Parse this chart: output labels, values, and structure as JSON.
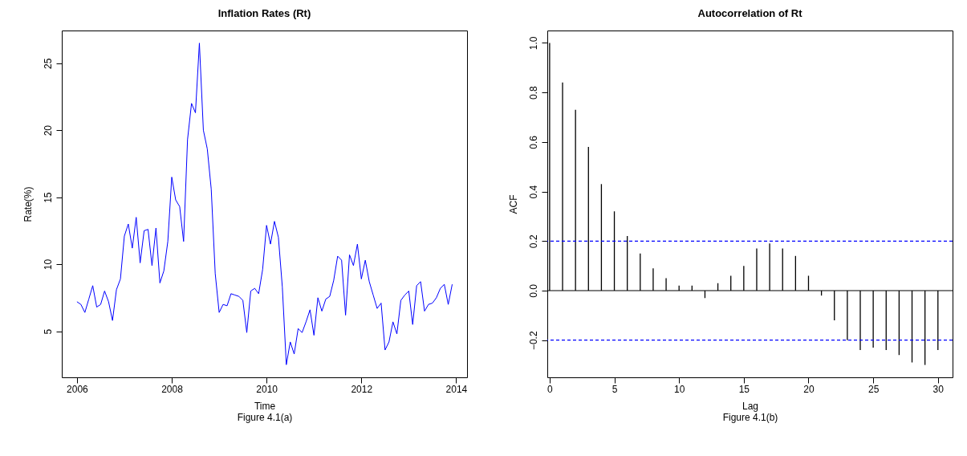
{
  "chart_data": [
    {
      "type": "line",
      "title": "Inflation Rates (Rt)",
      "xlabel": "Time",
      "ylabel": "Rate(%)",
      "annotations": [
        "Figure 4.1(a)"
      ],
      "x": [
        2006,
        2006.083,
        2006.167,
        2006.25,
        2006.333,
        2006.417,
        2006.5,
        2006.583,
        2006.667,
        2006.75,
        2006.833,
        2006.917,
        2007,
        2007.083,
        2007.167,
        2007.25,
        2007.333,
        2007.417,
        2007.5,
        2007.583,
        2007.667,
        2007.75,
        2007.833,
        2007.917,
        2008,
        2008.083,
        2008.167,
        2008.25,
        2008.333,
        2008.417,
        2008.5,
        2008.583,
        2008.667,
        2008.75,
        2008.833,
        2008.917,
        2009,
        2009.083,
        2009.167,
        2009.25,
        2009.333,
        2009.417,
        2009.5,
        2009.583,
        2009.667,
        2009.75,
        2009.833,
        2009.917,
        2010,
        2010.083,
        2010.167,
        2010.25,
        2010.333,
        2010.417,
        2010.5,
        2010.583,
        2010.667,
        2010.75,
        2010.833,
        2010.917,
        2011,
        2011.083,
        2011.167,
        2011.25,
        2011.333,
        2011.417,
        2011.5,
        2011.583,
        2011.667,
        2011.75,
        2011.833,
        2011.917,
        2012,
        2012.083,
        2012.167,
        2012.25,
        2012.333,
        2012.417,
        2012.5,
        2012.583,
        2012.667,
        2012.75,
        2012.833,
        2012.917,
        2013,
        2013.083,
        2013.167,
        2013.25,
        2013.333,
        2013.417,
        2013.5,
        2013.583,
        2013.667,
        2013.75,
        2013.833,
        2013.917
      ],
      "series": [
        {
          "color": "#0000ff",
          "values": [
            7.2,
            7.0,
            6.4,
            7.4,
            8.4,
            6.8,
            7.0,
            8.0,
            7.2,
            5.8,
            8.1,
            8.9,
            12.1,
            13.0,
            11.2,
            13.5,
            10.1,
            12.5,
            12.6,
            9.9,
            12.7,
            8.6,
            9.5,
            11.7,
            16.5,
            14.8,
            14.3,
            11.7,
            19.3,
            22.0,
            21.3,
            26.5,
            20.0,
            18.6,
            15.6,
            9.3,
            6.4,
            7.0,
            6.9,
            7.8,
            7.7,
            7.6,
            7.3,
            4.9,
            8.0,
            8.2,
            7.8,
            9.6,
            12.9,
            11.5,
            13.2,
            12.0,
            8.3,
            2.5,
            4.2,
            3.3,
            5.2,
            4.9,
            5.7,
            6.6,
            4.7,
            7.5,
            6.5,
            7.4,
            7.6,
            8.8,
            10.6,
            10.3,
            6.2,
            10.7,
            9.9,
            11.5,
            8.9,
            10.3,
            8.7,
            7.7,
            6.7,
            7.1,
            3.6,
            4.2,
            5.7,
            4.8,
            7.3,
            7.7,
            8.0,
            5.5,
            8.4,
            8.7,
            6.5,
            7.0,
            7.1,
            7.5,
            8.2,
            8.5,
            7.0,
            8.5
          ]
        }
      ],
      "xlim": [
        2005.68,
        2014.23
      ],
      "xticks": [
        2006,
        2008,
        2010,
        2012,
        2014
      ],
      "ylim": [
        1.56,
        27.44
      ],
      "yticks": [
        5,
        10,
        15,
        20,
        25
      ],
      "grid": false,
      "legend": false
    },
    {
      "type": "bar",
      "title": "Autocorrelation of Rt",
      "xlabel": "Lag",
      "ylabel": "ACF",
      "annotations": [
        "Figure 4.1(b)"
      ],
      "x": [
        0,
        1,
        2,
        3,
        4,
        5,
        6,
        7,
        8,
        9,
        10,
        11,
        12,
        13,
        14,
        15,
        16,
        17,
        18,
        19,
        20,
        21,
        22,
        23,
        24,
        25,
        26,
        27,
        28,
        29,
        30
      ],
      "series": [
        {
          "color": "#000000",
          "values": [
            1.0,
            0.84,
            0.73,
            0.58,
            0.43,
            0.32,
            0.22,
            0.15,
            0.09,
            0.05,
            0.02,
            0.02,
            -0.03,
            0.03,
            0.06,
            0.1,
            0.17,
            0.19,
            0.17,
            0.14,
            0.06,
            -0.02,
            -0.12,
            -0.2,
            -0.24,
            -0.23,
            -0.24,
            -0.26,
            -0.29,
            -0.3,
            -0.24
          ]
        }
      ],
      "xlim": [
        -0.18,
        31.13
      ],
      "xticks": [
        0,
        5,
        10,
        15,
        20,
        25,
        30
      ],
      "ylim": [
        -0.35,
        1.05
      ],
      "yticks": [
        {
          "value": -0.2,
          "label": "−0.2"
        },
        {
          "value": 0,
          "label": "0.0"
        },
        0.2,
        0.4,
        0.6,
        0.8,
        {
          "value": 1,
          "label": "1.0"
        }
      ],
      "ref_lines": [
        {
          "axis": "y",
          "value": 0.2,
          "color": "#0000ff",
          "line_style": "dashed"
        },
        {
          "axis": "y",
          "value": -0.2,
          "color": "#0000ff",
          "line_style": "dashed"
        },
        {
          "axis": "y",
          "value": 0,
          "color": "#000000",
          "line_style": "solid"
        }
      ],
      "grid": false,
      "legend": false
    }
  ]
}
